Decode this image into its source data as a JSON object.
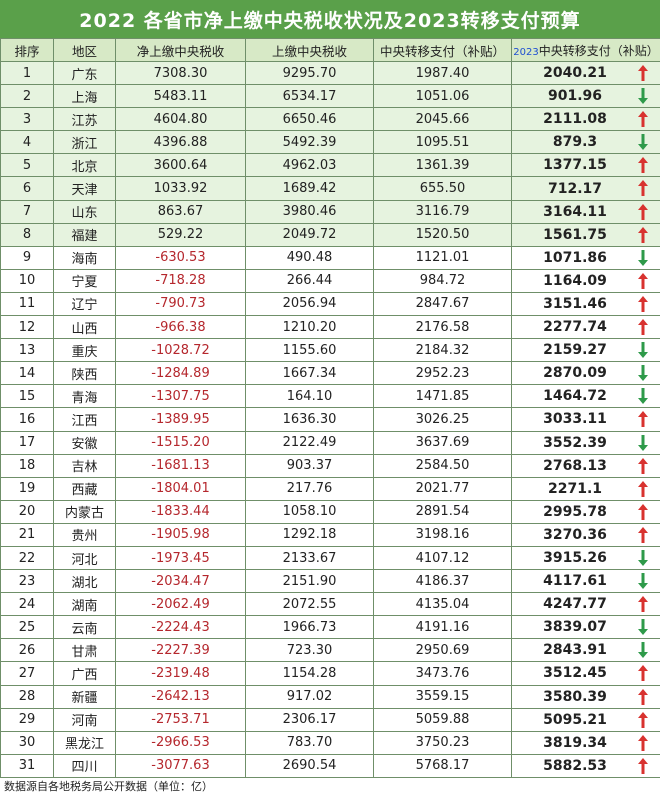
{
  "title": "2022 各省市净上缴中央税收状况及2023转移支付预算",
  "headers": {
    "rank": "排序",
    "region": "地区",
    "net": "净上缴中央税收",
    "paid": "上缴中央税收",
    "transfer": "中央转移支付（补贴）",
    "budget_year": "2023",
    "budget": "中央转移支付（补贴）"
  },
  "colors": {
    "up": "#d8322f",
    "down": "#2e9a4a",
    "negative": "#b5272d",
    "title_bg": "#5aa04a"
  },
  "rows": [
    {
      "rank": "1",
      "region": "广东",
      "net": "7308.30",
      "paid": "9295.70",
      "transfer": "1987.40",
      "budget": "2040.21",
      "trend": "up"
    },
    {
      "rank": "2",
      "region": "上海",
      "net": "5483.11",
      "paid": "6534.17",
      "transfer": "1051.06",
      "budget": "901.96",
      "trend": "down"
    },
    {
      "rank": "3",
      "region": "江苏",
      "net": "4604.80",
      "paid": "6650.46",
      "transfer": "2045.66",
      "budget": "2111.08",
      "trend": "up"
    },
    {
      "rank": "4",
      "region": "浙江",
      "net": "4396.88",
      "paid": "5492.39",
      "transfer": "1095.51",
      "budget": "879.3",
      "trend": "down"
    },
    {
      "rank": "5",
      "region": "北京",
      "net": "3600.64",
      "paid": "4962.03",
      "transfer": "1361.39",
      "budget": "1377.15",
      "trend": "up"
    },
    {
      "rank": "6",
      "region": "天津",
      "net": "1033.92",
      "paid": "1689.42",
      "transfer": "655.50",
      "budget": "712.17",
      "trend": "up"
    },
    {
      "rank": "7",
      "region": "山东",
      "net": "863.67",
      "paid": "3980.46",
      "transfer": "3116.79",
      "budget": "3164.11",
      "trend": "up"
    },
    {
      "rank": "8",
      "region": "福建",
      "net": "529.22",
      "paid": "2049.72",
      "transfer": "1520.50",
      "budget": "1561.75",
      "trend": "up"
    },
    {
      "rank": "9",
      "region": "海南",
      "net": "-630.53",
      "paid": "490.48",
      "transfer": "1121.01",
      "budget": "1071.86",
      "trend": "down"
    },
    {
      "rank": "10",
      "region": "宁夏",
      "net": "-718.28",
      "paid": "266.44",
      "transfer": "984.72",
      "budget": "1164.09",
      "trend": "up"
    },
    {
      "rank": "11",
      "region": "辽宁",
      "net": "-790.73",
      "paid": "2056.94",
      "transfer": "2847.67",
      "budget": "3151.46",
      "trend": "up"
    },
    {
      "rank": "12",
      "region": "山西",
      "net": "-966.38",
      "paid": "1210.20",
      "transfer": "2176.58",
      "budget": "2277.74",
      "trend": "up"
    },
    {
      "rank": "13",
      "region": "重庆",
      "net": "-1028.72",
      "paid": "1155.60",
      "transfer": "2184.32",
      "budget": "2159.27",
      "trend": "down"
    },
    {
      "rank": "14",
      "region": "陕西",
      "net": "-1284.89",
      "paid": "1667.34",
      "transfer": "2952.23",
      "budget": "2870.09",
      "trend": "down"
    },
    {
      "rank": "15",
      "region": "青海",
      "net": "-1307.75",
      "paid": "164.10",
      "transfer": "1471.85",
      "budget": "1464.72",
      "trend": "down"
    },
    {
      "rank": "16",
      "region": "江西",
      "net": "-1389.95",
      "paid": "1636.30",
      "transfer": "3026.25",
      "budget": "3033.11",
      "trend": "up"
    },
    {
      "rank": "17",
      "region": "安徽",
      "net": "-1515.20",
      "paid": "2122.49",
      "transfer": "3637.69",
      "budget": "3552.39",
      "trend": "down"
    },
    {
      "rank": "18",
      "region": "吉林",
      "net": "-1681.13",
      "paid": "903.37",
      "transfer": "2584.50",
      "budget": "2768.13",
      "trend": "up"
    },
    {
      "rank": "19",
      "region": "西藏",
      "net": "-1804.01",
      "paid": "217.76",
      "transfer": "2021.77",
      "budget": "2271.1",
      "trend": "up"
    },
    {
      "rank": "20",
      "region": "内蒙古",
      "net": "-1833.44",
      "paid": "1058.10",
      "transfer": "2891.54",
      "budget": "2995.78",
      "trend": "up"
    },
    {
      "rank": "21",
      "region": "贵州",
      "net": "-1905.98",
      "paid": "1292.18",
      "transfer": "3198.16",
      "budget": "3270.36",
      "trend": "up"
    },
    {
      "rank": "22",
      "region": "河北",
      "net": "-1973.45",
      "paid": "2133.67",
      "transfer": "4107.12",
      "budget": "3915.26",
      "trend": "down"
    },
    {
      "rank": "23",
      "region": "湖北",
      "net": "-2034.47",
      "paid": "2151.90",
      "transfer": "4186.37",
      "budget": "4117.61",
      "trend": "down"
    },
    {
      "rank": "24",
      "region": "湖南",
      "net": "-2062.49",
      "paid": "2072.55",
      "transfer": "4135.04",
      "budget": "4247.77",
      "trend": "up"
    },
    {
      "rank": "25",
      "region": "云南",
      "net": "-2224.43",
      "paid": "1966.73",
      "transfer": "4191.16",
      "budget": "3839.07",
      "trend": "down"
    },
    {
      "rank": "26",
      "region": "甘肃",
      "net": "-2227.39",
      "paid": "723.30",
      "transfer": "2950.69",
      "budget": "2843.91",
      "trend": "down"
    },
    {
      "rank": "27",
      "region": "广西",
      "net": "-2319.48",
      "paid": "1154.28",
      "transfer": "3473.76",
      "budget": "3512.45",
      "trend": "up"
    },
    {
      "rank": "28",
      "region": "新疆",
      "net": "-2642.13",
      "paid": "917.02",
      "transfer": "3559.15",
      "budget": "3580.39",
      "trend": "up"
    },
    {
      "rank": "29",
      "region": "河南",
      "net": "-2753.71",
      "paid": "2306.17",
      "transfer": "5059.88",
      "budget": "5095.21",
      "trend": "up"
    },
    {
      "rank": "30",
      "region": "黑龙江",
      "net": "-2966.53",
      "paid": "783.70",
      "transfer": "3750.23",
      "budget": "3819.34",
      "trend": "up"
    },
    {
      "rank": "31",
      "region": "四川",
      "net": "-3077.63",
      "paid": "2690.54",
      "transfer": "5768.17",
      "budget": "5882.53",
      "trend": "up"
    }
  ],
  "footer": "数据源自各地税务局公开数据（单位：亿）"
}
